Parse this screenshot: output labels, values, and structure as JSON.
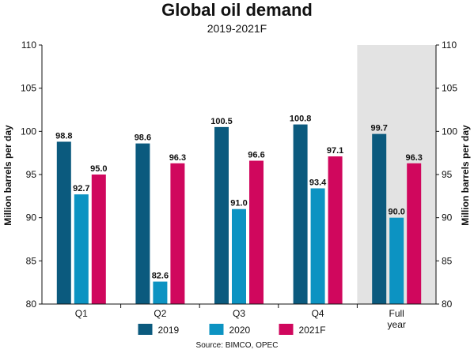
{
  "chart_data": {
    "type": "bar",
    "title": "Global oil demand",
    "subtitle": "2019-2021F",
    "ylabel": "Million barrels per day",
    "ylabel_right": "Million barrels per day",
    "ylim": [
      80,
      110
    ],
    "yticks": [
      80,
      85,
      90,
      95,
      100,
      105,
      110
    ],
    "categories": [
      "Q1",
      "Q2",
      "Q3",
      "Q4",
      "Full year"
    ],
    "category_label_lines": [
      [
        "Q1"
      ],
      [
        "Q2"
      ],
      [
        "Q3"
      ],
      [
        "Q4"
      ],
      [
        "Full",
        "year"
      ]
    ],
    "highlighted_category": "Full year",
    "grid": false,
    "legend_position": "bottom",
    "series": [
      {
        "name": "2019",
        "color": "#0b5a7e",
        "values": [
          98.8,
          98.6,
          100.5,
          100.8,
          99.7
        ]
      },
      {
        "name": "2020",
        "color": "#0c93c2",
        "values": [
          92.7,
          82.6,
          91.0,
          93.4,
          90.0
        ]
      },
      {
        "name": "2021F",
        "color": "#d0075d",
        "values": [
          95.0,
          96.3,
          96.6,
          97.1,
          96.3
        ]
      }
    ],
    "source": "Source: BIMCO, OPEC"
  },
  "colors": {
    "highlight_background": "#e3e3e3"
  }
}
